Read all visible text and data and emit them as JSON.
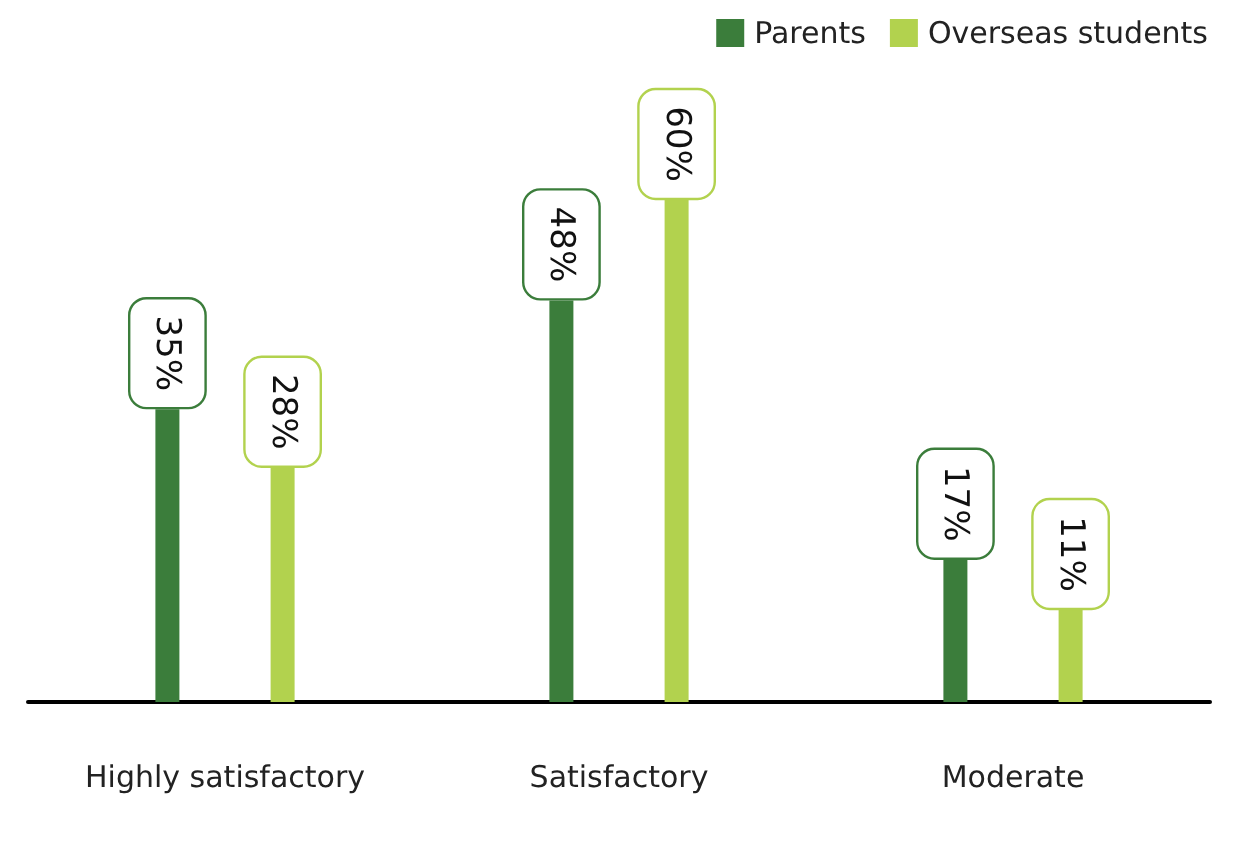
{
  "chart_data": {
    "type": "bar",
    "categories": [
      "Highly satisfactory",
      "Satisfactory",
      "Moderate"
    ],
    "series": [
      {
        "name": "Parents",
        "color": "#3b7d3b",
        "values": [
          35,
          48,
          17
        ],
        "value_labels": [
          "35%",
          "48%",
          "17%"
        ]
      },
      {
        "name": "Overseas students",
        "color": "#b2d24e",
        "values": [
          28,
          60,
          11
        ],
        "value_labels": [
          "28%",
          "60%",
          "11%"
        ]
      }
    ],
    "legend": "top right",
    "grid": false
  }
}
